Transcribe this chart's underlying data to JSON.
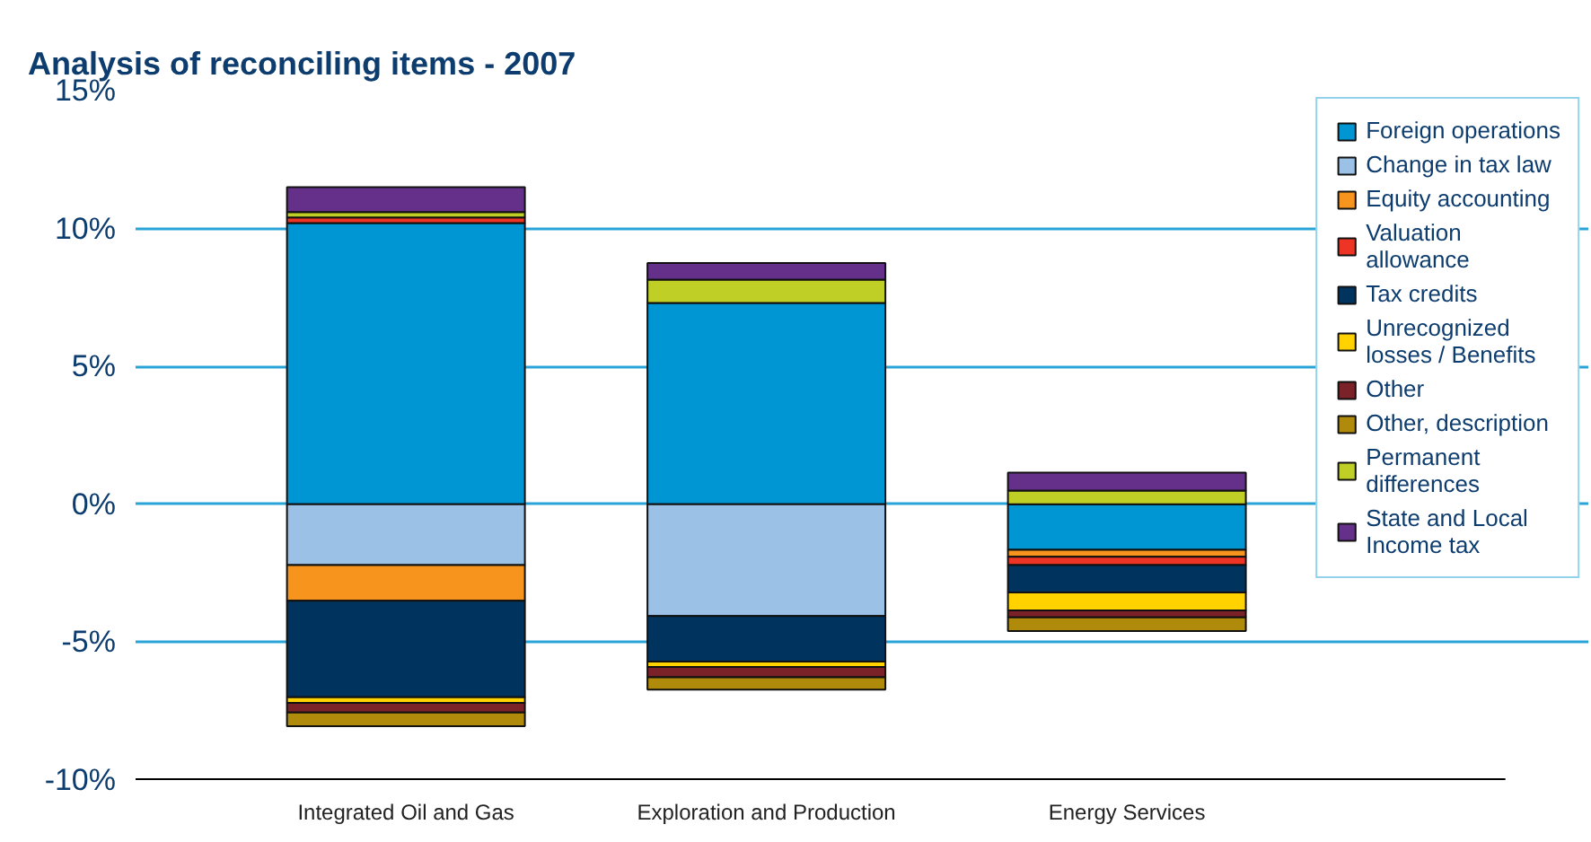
{
  "chart_data": {
    "type": "bar",
    "title": "Analysis of reconciling items - 2007",
    "stacked": true,
    "categories": [
      "Integrated Oil and Gas",
      "Exploration and Production",
      "Energy Services"
    ],
    "series": [
      {
        "name": "Foreign operations",
        "color": "#0095d3",
        "values": [
          10.2,
          7.3,
          -1.65
        ]
      },
      {
        "name": "Change in tax law",
        "color": "#9bc2e6",
        "values": [
          -2.2,
          -4.05,
          null
        ]
      },
      {
        "name": "Equity accounting",
        "color": "#f7941d",
        "values": [
          -1.3,
          null,
          -0.25
        ]
      },
      {
        "name": "Valuation allowance",
        "color": "#ee3424",
        "values": [
          0.2,
          null,
          -0.3
        ]
      },
      {
        "name": "Tax credits",
        "color": "#00335e",
        "values": [
          -3.5,
          -1.65,
          -1.0
        ]
      },
      {
        "name": "Unrecognized losses / Benefits",
        "color": "#ffd200",
        "values": [
          -0.2,
          -0.2,
          -0.65
        ]
      },
      {
        "name": "Other",
        "color": "#7b2128",
        "values": [
          -0.35,
          -0.37,
          -0.25
        ]
      },
      {
        "name": "Other, description",
        "color": "#b08a0a",
        "values": [
          -0.5,
          -0.45,
          -0.5
        ]
      },
      {
        "name": "Permanent differences",
        "color": "#c0cf25",
        "values": [
          0.2,
          0.85,
          0.5
        ]
      },
      {
        "name": "State and Local Income tax",
        "color": "#65308a",
        "values": [
          0.9,
          0.6,
          0.65
        ]
      }
    ],
    "ylim": [
      -10,
      15
    ],
    "yticks": [
      {
        "value": -10,
        "label": "-10%"
      },
      {
        "value": -5,
        "label": "-5%"
      },
      {
        "value": 0,
        "label": "0%"
      },
      {
        "value": 5,
        "label": "5%"
      },
      {
        "value": 10,
        "label": "10%"
      },
      {
        "value": 15,
        "label": "15%"
      }
    ],
    "grid": "y",
    "legend": "right"
  }
}
